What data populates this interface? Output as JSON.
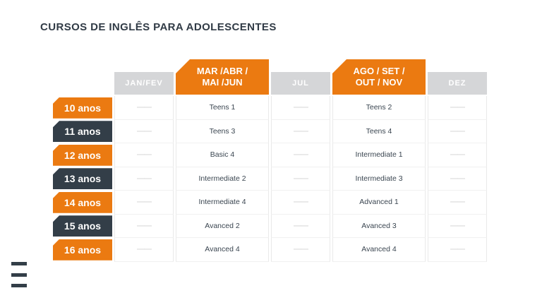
{
  "page": {
    "title": "CURSOS DE INGLÊS PARA ADOLESCENTES"
  },
  "colors": {
    "orange": "#EB7A11",
    "navy": "#333E48",
    "header_gray": "#D5D6D8",
    "cell_text": "#3A4550"
  },
  "menu": {
    "icon": "hamburger-icon"
  },
  "table": {
    "columns": [
      {
        "label": "JAN/FEV",
        "style": "gray"
      },
      {
        "label": "MAR /ABR /\nMAI /JUN",
        "style": "orange"
      },
      {
        "label": "JUL",
        "style": "gray"
      },
      {
        "label": "AGO / SET /\nOUT / NOV",
        "style": "orange"
      },
      {
        "label": "DEZ",
        "style": "gray"
      }
    ],
    "rows": [
      {
        "age": "10 anos",
        "accent": "orange",
        "cells": [
          "——",
          "Teens 1",
          "——",
          "Teens 2",
          "——"
        ]
      },
      {
        "age": "11 anos",
        "accent": "navy",
        "cells": [
          "——",
          "Teens 3",
          "——",
          "Teens 4",
          "——"
        ]
      },
      {
        "age": "12 anos",
        "accent": "orange",
        "cells": [
          "——",
          "Basic 4",
          "——",
          "Intermediate 1",
          "——"
        ]
      },
      {
        "age": "13 anos",
        "accent": "navy",
        "cells": [
          "——",
          "Intermediate 2",
          "——",
          "Intermediate 3",
          "——"
        ]
      },
      {
        "age": "14 anos",
        "accent": "orange",
        "cells": [
          "——",
          "Intermediate 4",
          "——",
          "Advanced 1",
          "——"
        ]
      },
      {
        "age": "15 anos",
        "accent": "navy",
        "cells": [
          "——",
          "Avanced 2",
          "——",
          "Avanced 3",
          "——"
        ]
      },
      {
        "age": "16 anos",
        "accent": "orange",
        "cells": [
          "——",
          "Avanced 4",
          "——",
          "Avanced 4",
          "——"
        ]
      }
    ]
  }
}
